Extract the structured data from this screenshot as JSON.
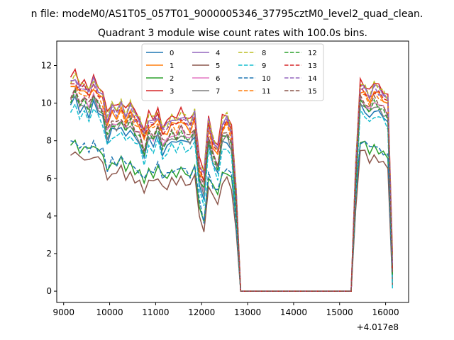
{
  "figure": {
    "suptitle": "n file: modeM0/AS1T05_057T01_9000005346_37795cztM0_level2_quad_clean.",
    "title": "Quadrant 3 module wise count rates with 100.0s bins."
  },
  "chart_data": {
    "type": "line",
    "title": "Quadrant 3 module wise count rates with 100.0s bins.",
    "xlabel": "",
    "ylabel": "",
    "x_offset_label": "+4.017e8",
    "xlim": [
      8850,
      16500
    ],
    "ylim": [
      -0.6,
      13.3
    ],
    "xticks": [
      9000,
      10000,
      11000,
      12000,
      13000,
      14000,
      15000,
      16000
    ],
    "yticks": [
      0,
      2,
      4,
      6,
      8,
      10,
      12
    ],
    "grid": false,
    "legend": {
      "placement": "upper-center",
      "columns": 4
    },
    "series": [
      {
        "name": "0",
        "color": "#1f77b4",
        "dash": "solid"
      },
      {
        "name": "1",
        "color": "#ff7f0e",
        "dash": "solid"
      },
      {
        "name": "2",
        "color": "#2ca02c",
        "dash": "solid"
      },
      {
        "name": "3",
        "color": "#d62728",
        "dash": "solid"
      },
      {
        "name": "4",
        "color": "#9467bd",
        "dash": "solid"
      },
      {
        "name": "5",
        "color": "#8c564b",
        "dash": "solid"
      },
      {
        "name": "6",
        "color": "#e377c2",
        "dash": "solid"
      },
      {
        "name": "7",
        "color": "#7f7f7f",
        "dash": "solid"
      },
      {
        "name": "8",
        "color": "#bcbd22",
        "dash": "dashed"
      },
      {
        "name": "9",
        "color": "#17becf",
        "dash": "dashed"
      },
      {
        "name": "10",
        "color": "#1f77b4",
        "dash": "dashed"
      },
      {
        "name": "11",
        "color": "#ff7f0e",
        "dash": "dashed"
      },
      {
        "name": "12",
        "color": "#2ca02c",
        "dash": "dashed"
      },
      {
        "name": "13",
        "color": "#d62728",
        "dash": "dashed"
      },
      {
        "name": "14",
        "color": "#9467bd",
        "dash": "dashed"
      },
      {
        "name": "15",
        "color": "#8c564b",
        "dash": "dashed"
      }
    ],
    "x": [
      9150,
      9250,
      9350,
      9450,
      9550,
      9650,
      9750,
      9850,
      9950,
      10050,
      10150,
      10250,
      10350,
      10450,
      10550,
      10650,
      10750,
      10850,
      10950,
      11050,
      11150,
      11250,
      11350,
      11450,
      11550,
      11650,
      11750,
      11850,
      11950,
      12050,
      12150,
      12250,
      12350,
      12450,
      12550,
      12650,
      12750,
      12850,
      13850,
      14850,
      15250,
      15350,
      15450,
      15550,
      15650,
      15750,
      15850,
      15950,
      16050,
      16150
    ],
    "profiles": {
      "base": [
        10.5,
        10.8,
        10.2,
        10.4,
        10.0,
        10.6,
        10.1,
        9.8,
        8.6,
        9.2,
        9.0,
        9.4,
        8.8,
        9.3,
        8.7,
        8.5,
        7.7,
        8.6,
        8.4,
        8.9,
        8.0,
        8.2,
        8.6,
        8.4,
        8.8,
        8.5,
        8.3,
        8.9,
        6.2,
        5.6,
        8.4,
        7.4,
        6.9,
        8.4,
        8.6,
        8.0,
        4.8,
        0,
        0,
        0,
        0,
        6.0,
        10.4,
        10.2,
        9.8,
        10.3,
        10.1,
        9.9,
        9.6,
        1.0
      ],
      "low": [
        7.8,
        7.9,
        7.5,
        7.6,
        7.4,
        7.8,
        7.5,
        7.4,
        6.3,
        6.9,
        6.7,
        7.0,
        6.5,
        6.8,
        6.4,
        6.3,
        5.8,
        6.4,
        6.2,
        6.6,
        6.0,
        6.1,
        6.4,
        6.2,
        6.5,
        6.3,
        6.1,
        6.5,
        4.6,
        3.6,
        6.2,
        5.5,
        5.2,
        6.2,
        6.4,
        6.0,
        3.6,
        0,
        0,
        0,
        0,
        5.0,
        7.9,
        7.8,
        7.4,
        7.7,
        7.5,
        7.3,
        7.1,
        0.8
      ]
    },
    "module_levels": {
      "0": [
        "base",
        -0.6
      ],
      "1": [
        "base",
        0.3
      ],
      "2": [
        "low",
        0.0
      ],
      "3": [
        "base",
        0.8
      ],
      "4": [
        "base",
        0.6
      ],
      "5": [
        "low",
        -0.5
      ],
      "6": [
        "base",
        -0.2
      ],
      "7": [
        "base",
        -0.4
      ],
      "8": [
        "base",
        0.7
      ],
      "9": [
        "base",
        -0.9
      ],
      "10": [
        "low",
        0.1
      ],
      "11": [
        "base",
        0.2
      ],
      "12": [
        "base",
        -0.3
      ],
      "13": [
        "base",
        0.4
      ],
      "14": [
        "base",
        0.5
      ],
      "15": [
        "base",
        -0.1
      ]
    }
  }
}
